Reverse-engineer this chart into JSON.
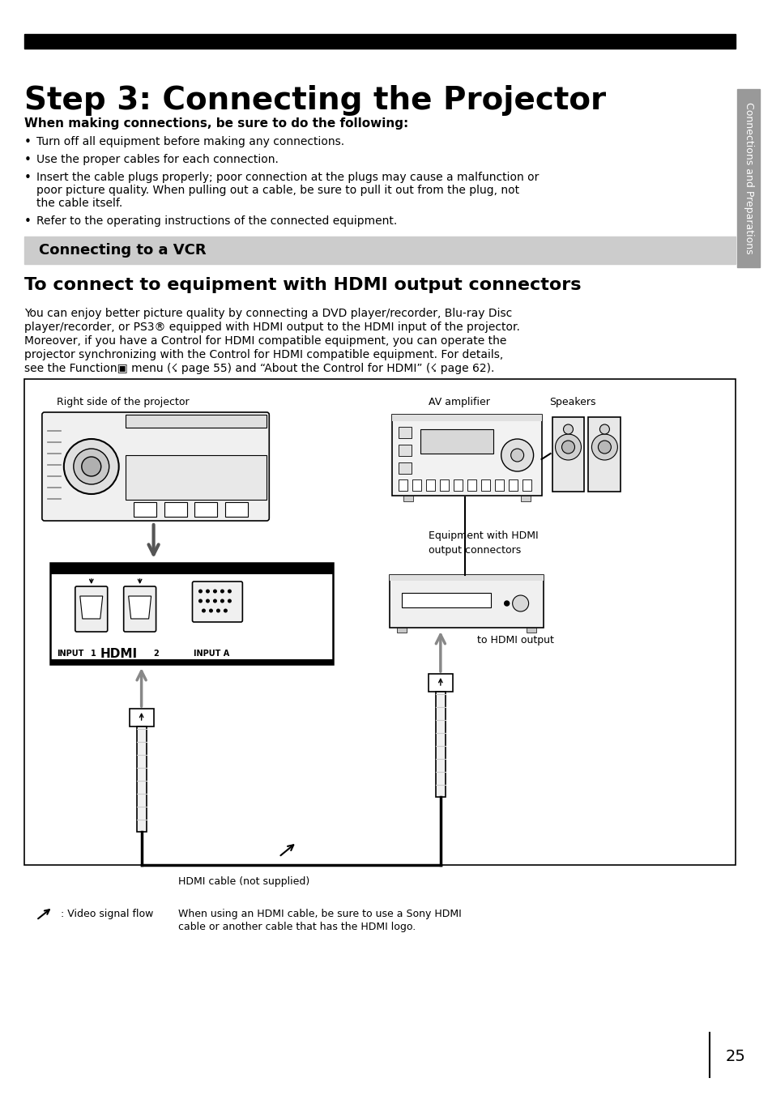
{
  "title": "Step 3: Connecting the Projector",
  "title_bar_color": "#000000",
  "page_bg": "#ffffff",
  "section_bg": "#cccccc",
  "border_color": "#000000",
  "sidebar_color": "#999999",
  "sidebar_text": "Connections and Preparations",
  "bold_heading": "When making connections, be sure to do the following:",
  "bullets": [
    "Turn off all equipment before making any connections.",
    "Use the proper cables for each connection.",
    "Insert the cable plugs properly; poor connection at the plugs may cause a malfunction or\npoor picture quality. When pulling out a cable, be sure to pull it out from the plug, not\nthe cable itself.",
    "Refer to the operating instructions of the connected equipment."
  ],
  "section_heading": "Connecting to a VCR",
  "subheading": "To connect to equipment with HDMI output connectors",
  "body_text": "You can enjoy better picture quality by connecting a DVD player/recorder, Blu-ray Disc\nplayer/recorder, or PS3® equipped with HDMI output to the HDMI input of the projector.\nMoreover, if you have a Control for HDMI compatible equipment, you can operate the\nprojector synchronizing with the Control for HDMI compatible equipment. For details,\nsee the Function▣ menu (☇ page 55) and “About the Control for HDMI” (☇ page 62).",
  "diagram_labels": {
    "right_side": "Right side of the projector",
    "av_amplifier": "AV amplifier",
    "speakers": "Speakers",
    "equipment": "Equipment with HDMI\noutput connectors",
    "hdmi_output": "to HDMI output",
    "hdmi_cable": "HDMI cable (not supplied)",
    "signal_flow": ": Video signal flow",
    "signal_note": "When using an HDMI cable, be sure to use a Sony HDMI\ncable or another cable that has the HDMI logo."
  },
  "page_number": "25"
}
